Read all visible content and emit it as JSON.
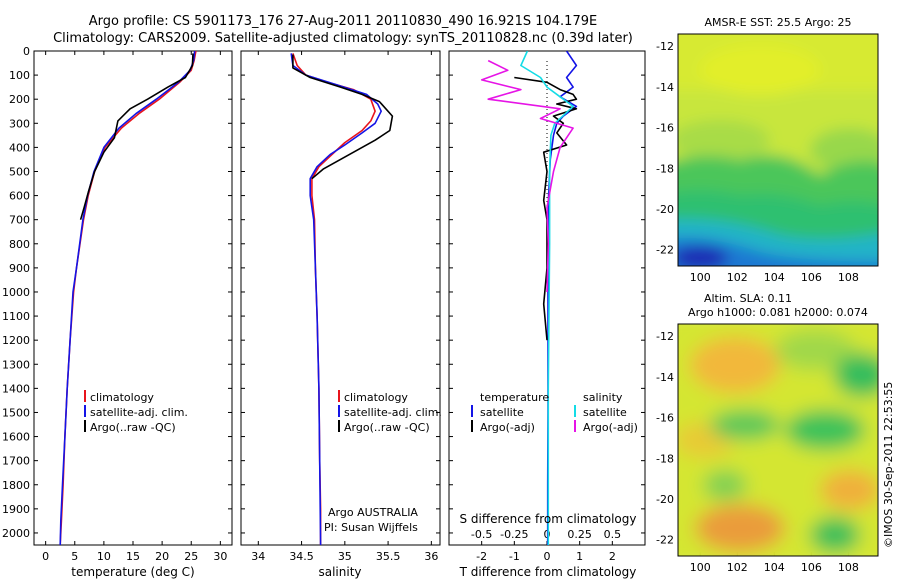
{
  "header": {
    "line1": "Argo profile: CS 5901173_176 27-Aug-2011 20110830_490 16.921S 104.179E",
    "line2": "Climatology: CARS2009. Satellite-adjusted climatology: synTS_20110828.nc (0.39d later)"
  },
  "colors": {
    "climatology": "#e8141c",
    "satellite": "#1414e6",
    "argo": "#000000",
    "salinity_sat": "#14dce6",
    "salinity_argo": "#e614e6"
  },
  "chart_data": [
    {
      "id": "temperature",
      "type": "line",
      "xlabel": "temperature (deg C)",
      "xticks": [
        "0",
        "5",
        "10",
        "15",
        "20",
        "25",
        "30"
      ],
      "xlim": [
        -2,
        32
      ],
      "yticks": [
        "0",
        "100",
        "200",
        "300",
        "400",
        "500",
        "600",
        "700",
        "800",
        "900",
        "1000",
        "1100",
        "1200",
        "1300",
        "1400",
        "1500",
        "1600",
        "1700",
        "1800",
        "1900",
        "2000"
      ],
      "ylim": [
        0,
        2050
      ],
      "legend": [
        "climatology",
        "satellite-adj. clim.",
        "Argo(..raw -QC)"
      ],
      "series": [
        {
          "name": "climatology",
          "color": "#e8141c",
          "x": [
            25.8,
            25.5,
            25.0,
            23.0,
            19.5,
            16.0,
            13.0,
            10.2,
            8.4,
            7.3,
            6.5,
            5.3,
            4.8,
            4.2,
            3.7,
            3.3,
            3.0,
            2.7,
            2.5,
            2.3
          ],
          "y": [
            0,
            40,
            80,
            130,
            200,
            260,
            320,
            400,
            500,
            600,
            700,
            900,
            1000,
            1200,
            1400,
            1600,
            1800,
            1950,
            2050,
            2060
          ]
        },
        {
          "name": "satellite-adj. clim.",
          "color": "#1414e6",
          "x": [
            25.6,
            25.4,
            24.8,
            22.8,
            19.0,
            15.5,
            12.6,
            10.0,
            8.3,
            7.2,
            6.4,
            5.3,
            4.7,
            4.2,
            3.7,
            3.3,
            2.9,
            2.6,
            2.5
          ],
          "y": [
            0,
            40,
            80,
            130,
            200,
            260,
            320,
            400,
            500,
            600,
            700,
            900,
            1000,
            1200,
            1400,
            1600,
            1800,
            1950,
            2050
          ]
        },
        {
          "name": "Argo(..raw -QC)",
          "color": "#000000",
          "x": [
            25.3,
            25.2,
            24.0,
            21.0,
            17.5,
            14.5,
            12.4,
            11.8,
            10.0,
            8.4,
            7.4,
            6.6,
            6.0
          ],
          "y": [
            10,
            60,
            110,
            150,
            200,
            240,
            290,
            360,
            420,
            500,
            580,
            650,
            700
          ]
        }
      ]
    },
    {
      "id": "salinity",
      "type": "line",
      "xlabel": "salinity",
      "xticks": [
        "34",
        "34.5",
        "35",
        "35.5",
        "36"
      ],
      "xlim": [
        33.8,
        36.1
      ],
      "legend": [
        "climatology",
        "satellite-adj. clim.",
        "Argo(..raw -QC)"
      ],
      "annotation": [
        "Argo AUSTRALIA",
        "PI: Susan Wijffels"
      ],
      "series": [
        {
          "name": "climatology",
          "color": "#e8141c",
          "x": [
            34.4,
            34.45,
            34.55,
            34.8,
            35.1,
            35.3,
            35.35,
            35.3,
            35.2,
            35.0,
            34.85,
            34.7,
            34.62,
            34.62,
            34.65,
            34.66,
            34.68,
            34.7,
            34.71,
            34.72,
            34.72
          ],
          "y": [
            10,
            60,
            100,
            130,
            160,
            200,
            250,
            290,
            330,
            380,
            430,
            480,
            530,
            600,
            700,
            900,
            1100,
            1400,
            1700,
            1900,
            2050
          ]
        },
        {
          "name": "satellite-adj. clim.",
          "color": "#1414e6",
          "x": [
            34.38,
            34.4,
            34.55,
            34.9,
            35.25,
            35.38,
            35.42,
            35.35,
            35.2,
            35.0,
            34.83,
            34.68,
            34.6,
            34.6,
            34.64,
            34.66,
            34.68,
            34.7,
            34.71,
            34.72
          ],
          "y": [
            10,
            60,
            100,
            140,
            180,
            220,
            250,
            300,
            340,
            390,
            430,
            480,
            530,
            600,
            700,
            900,
            1100,
            1400,
            1700,
            2050
          ]
        },
        {
          "name": "Argo(..raw -QC)",
          "color": "#000000",
          "x": [
            34.4,
            34.4,
            34.6,
            34.95,
            35.2,
            35.4,
            35.55,
            35.52,
            35.35,
            35.15,
            34.95,
            34.75,
            34.62
          ],
          "y": [
            15,
            70,
            110,
            150,
            180,
            210,
            270,
            330,
            370,
            410,
            450,
            490,
            530
          ]
        }
      ]
    },
    {
      "id": "difference",
      "type": "line",
      "xlabel_top": "S difference from climatology",
      "xticks_top": [
        "-0.5",
        "-0.25",
        "0",
        "0.25",
        "0.5"
      ],
      "xlabel_bottom": "T difference from climatology",
      "xticks_bottom": [
        "-2",
        "-1",
        "0",
        "1",
        "2"
      ],
      "xlim": [
        -3,
        3
      ],
      "legend_left_title": "temperature",
      "legend_left": [
        "satellite",
        "Argo(-adj)"
      ],
      "legend_right_title": "salinity",
      "legend_right": [
        "satellite",
        "Argo(-adj)"
      ],
      "series": [
        {
          "name": "temperature satellite",
          "color": "#1414e6",
          "x": [
            0.6,
            0.9,
            0.6,
            0.8,
            0.4,
            0.9,
            0.5,
            0.3,
            0.2,
            0.1,
            0.05,
            0.03,
            0.03,
            0.03,
            0.02,
            0.02
          ],
          "y": [
            0,
            60,
            110,
            150,
            190,
            230,
            270,
            300,
            350,
            450,
            600,
            800,
            1100,
            1500,
            1800,
            2050
          ]
        },
        {
          "name": "temperature Argo(-adj)",
          "color": "#000000",
          "x": [
            -1.0,
            0.0,
            0.4,
            0.8,
            0.9,
            0.3,
            0.9,
            0.2,
            0.5,
            0.3,
            0.6,
            -0.1,
            0.0,
            -0.1,
            0.0,
            0.0,
            -0.1,
            0.0
          ],
          "y": [
            110,
            130,
            160,
            180,
            200,
            220,
            240,
            270,
            300,
            340,
            390,
            420,
            500,
            620,
            700,
            900,
            1050,
            1200
          ]
        },
        {
          "name": "salinity satellite",
          "color": "#14dce6",
          "x": [
            -0.15,
            -0.2,
            -0.05,
            0.0,
            0.1,
            0.2,
            0.12,
            0.06,
            0.03,
            0.02,
            0.02,
            0.01,
            0.01
          ],
          "y": [
            0,
            60,
            110,
            150,
            190,
            230,
            270,
            300,
            350,
            500,
            800,
            1400,
            2050
          ]
        },
        {
          "name": "salinity Argo(-adj)",
          "color": "#e614e6",
          "x": [
            -0.45,
            -0.3,
            -0.5,
            -0.2,
            -0.45,
            0.1,
            -0.05,
            0.2,
            0.1,
            0.05,
            0.0,
            0.01,
            0.0
          ],
          "y": [
            40,
            80,
            120,
            160,
            200,
            240,
            280,
            320,
            400,
            500,
            650,
            800,
            1000
          ]
        }
      ]
    },
    {
      "id": "sst-map",
      "type": "heatmap",
      "title": "AMSR-E SST: 25.5  Argo: 25",
      "xticks": [
        "100",
        "102",
        "104",
        "106",
        "108"
      ],
      "xlim": [
        98.8,
        109.6
      ],
      "yticks": [
        "-12",
        "-14",
        "-16",
        "-18",
        "-20",
        "-22"
      ],
      "ylim": [
        -22.8,
        -11.4
      ],
      "marker": {
        "lon": 104.179,
        "lat": -16.921
      }
    },
    {
      "id": "sla-map",
      "type": "heatmap",
      "title": "Altim. SLA: 0.11",
      "subtitle": "Argo h1000: 0.081  h2000: 0.074",
      "xticks": [
        "100",
        "102",
        "104",
        "106",
        "108"
      ],
      "xlim": [
        98.8,
        109.6
      ],
      "yticks": [
        "-12",
        "-14",
        "-16",
        "-18",
        "-20",
        "-22"
      ],
      "ylim": [
        -22.8,
        -11.4
      ],
      "marker": {
        "lon": 104.179,
        "lat": -16.921
      }
    }
  ],
  "footer": {
    "stamp": "©IMOS 30-Sep-2011 22:53:55"
  }
}
